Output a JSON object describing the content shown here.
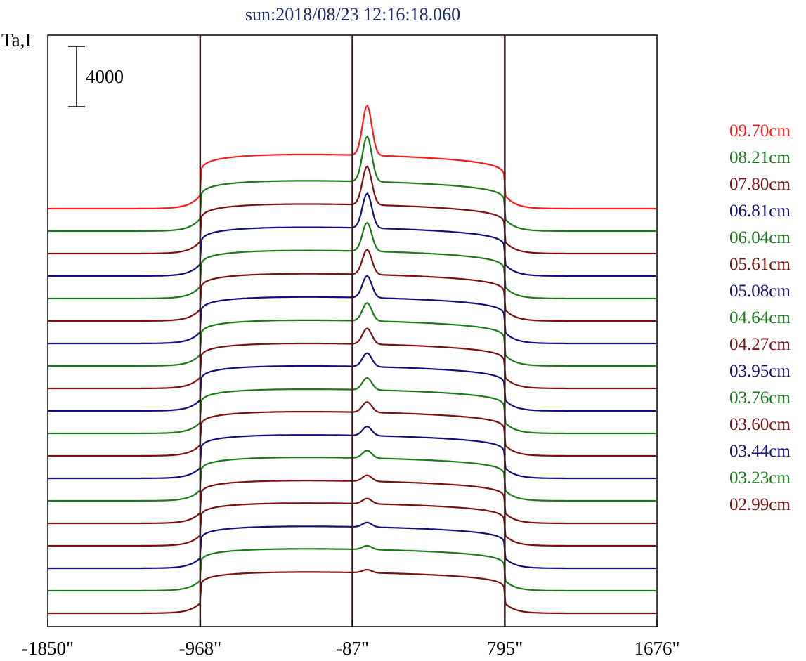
{
  "chart_data": {
    "type": "line",
    "title": "sun:2018/08/23 12:16:18.060",
    "ylabel": "Ta,I",
    "scale_bar_label": "4000",
    "scale_bar_value": 4000,
    "xlim": [
      -1850,
      1676
    ],
    "x_ticks": [
      -1850,
      -968,
      -87,
      795,
      1676
    ],
    "x_tick_labels": [
      "-1850\"",
      "-968\"",
      "-87\"",
      "795\"",
      "1676\""
    ],
    "vertical_markers": [
      -968,
      -87,
      795
    ],
    "series": [
      {
        "name": "09.70cm",
        "color": "#ff1a1a",
        "peak": 3300,
        "plateau": 3550
      },
      {
        "name": "08.21cm",
        "color": "#1a7a1a",
        "peak": 3000,
        "plateau": 3300
      },
      {
        "name": "07.80cm",
        "color": "#7a1010",
        "peak": 2550,
        "plateau": 3250
      },
      {
        "name": "06.81cm",
        "color": "#10107a",
        "peak": 2300,
        "plateau": 3200
      },
      {
        "name": "06.04cm",
        "color": "#1a7a1a",
        "peak": 1900,
        "plateau": 3150
      },
      {
        "name": "05.61cm",
        "color": "#7a1010",
        "peak": 1650,
        "plateau": 3100
      },
      {
        "name": "05.08cm",
        "color": "#10107a",
        "peak": 1450,
        "plateau": 3050
      },
      {
        "name": "04.64cm",
        "color": "#1a7a1a",
        "peak": 1200,
        "plateau": 3000
      },
      {
        "name": "04.27cm",
        "color": "#7a1010",
        "peak": 1050,
        "plateau": 2950
      },
      {
        "name": "03.95cm",
        "color": "#10107a",
        "peak": 900,
        "plateau": 2950
      },
      {
        "name": "03.76cm",
        "color": "#1a7a1a",
        "peak": 800,
        "plateau": 2900
      },
      {
        "name": "03.60cm",
        "color": "#7a1010",
        "peak": 700,
        "plateau": 2900
      },
      {
        "name": "03.44cm",
        "color": "#10107a",
        "peak": 600,
        "plateau": 2850
      },
      {
        "name": "03.23cm",
        "color": "#1a7a1a",
        "peak": 500,
        "plateau": 2850
      },
      {
        "name": "02.99cm",
        "color": "#7a1010",
        "peak": 400,
        "plateau": 2800
      },
      {
        "name": "",
        "color": "#7a1010",
        "peak": 350,
        "plateau": 2800
      },
      {
        "name": "",
        "color": "#10107a",
        "peak": 300,
        "plateau": 2750
      },
      {
        "name": "",
        "color": "#1a7a1a",
        "peak": 250,
        "plateau": 2750
      },
      {
        "name": "",
        "color": "#7a1010",
        "peak": 200,
        "plateau": 2700
      }
    ]
  }
}
